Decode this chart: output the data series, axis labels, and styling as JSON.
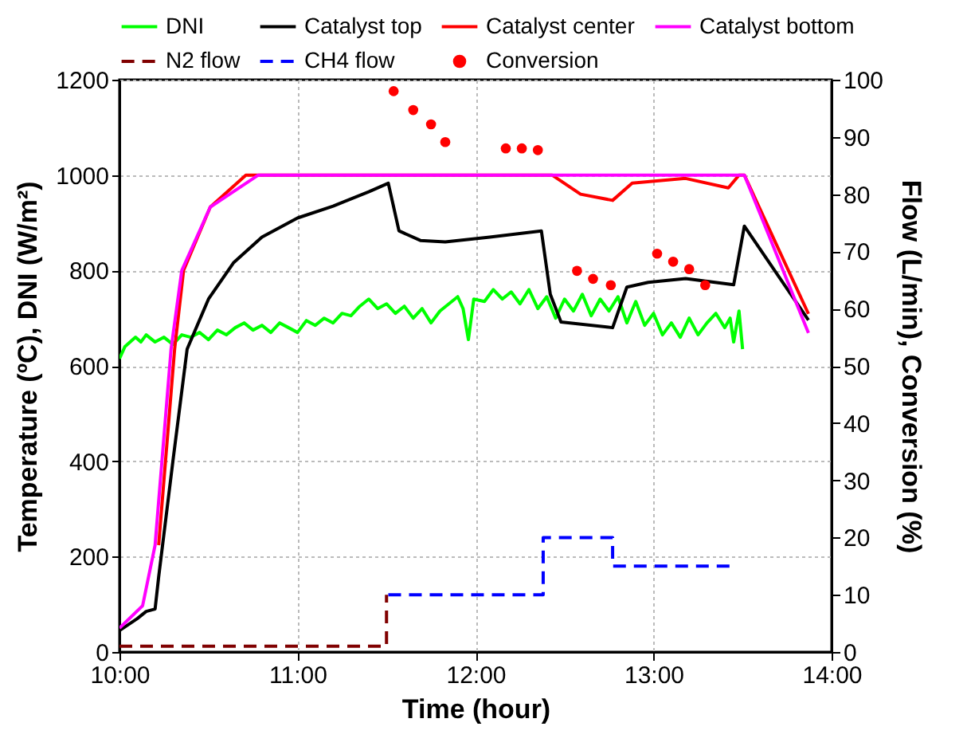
{
  "chart_data": {
    "type": "line",
    "xlabel": "Time (hour)",
    "ylabel": "Temperature (ºC), DNI (W/m²)",
    "y2label": "Flow (L/min), Conversion (%)",
    "xlim": [
      10,
      14
    ],
    "xticks": [
      {
        "value": 10,
        "label": "10:00"
      },
      {
        "value": 11,
        "label": "11:00"
      },
      {
        "value": 12,
        "label": "12:00"
      },
      {
        "value": 13,
        "label": "13:00"
      },
      {
        "value": 14,
        "label": "14:00"
      }
    ],
    "ylim": [
      0,
      1200
    ],
    "yticks": [
      0,
      200,
      400,
      600,
      800,
      1000,
      1200
    ],
    "y2lim": [
      0,
      100
    ],
    "y2ticks": [
      0,
      10,
      20,
      30,
      40,
      50,
      60,
      70,
      80,
      90,
      100
    ],
    "grid": true,
    "legend": "top",
    "line_style": "solid",
    "series": [
      {
        "name": "DNI",
        "color": "#00ff00",
        "x": [
          10.0,
          10.03,
          10.06,
          10.09,
          10.12,
          10.15,
          10.2,
          10.25,
          10.3,
          10.35,
          10.4,
          10.45,
          10.5,
          10.55,
          10.6,
          10.65,
          10.7,
          10.75,
          10.8,
          10.85,
          10.9,
          10.95,
          11.0,
          11.05,
          11.1,
          11.15,
          11.2,
          11.25,
          11.3,
          11.35,
          11.4,
          11.45,
          11.5,
          11.55,
          11.6,
          11.65,
          11.7,
          11.75,
          11.8,
          11.85,
          11.9,
          11.93,
          11.96,
          11.99,
          12.05,
          12.1,
          12.15,
          12.2,
          12.25,
          12.3,
          12.35,
          12.4,
          12.45,
          12.5,
          12.55,
          12.6,
          12.65,
          12.7,
          12.75,
          12.8,
          12.85,
          12.9,
          12.95,
          13.0,
          13.05,
          13.1,
          13.15,
          13.2,
          13.25,
          13.3,
          13.35,
          13.4,
          13.43,
          13.45,
          13.48,
          13.5
        ],
        "values": [
          615,
          640,
          650,
          660,
          650,
          665,
          650,
          660,
          645,
          665,
          660,
          670,
          655,
          675,
          665,
          680,
          690,
          675,
          685,
          670,
          690,
          680,
          670,
          695,
          685,
          700,
          690,
          710,
          705,
          725,
          740,
          720,
          730,
          710,
          725,
          700,
          720,
          690,
          715,
          730,
          745,
          720,
          655,
          740,
          735,
          760,
          740,
          755,
          730,
          760,
          720,
          745,
          700,
          740,
          715,
          750,
          705,
          740,
          715,
          745,
          690,
          735,
          685,
          710,
          665,
          690,
          660,
          700,
          665,
          690,
          710,
          680,
          700,
          650,
          715,
          635
        ]
      },
      {
        "name": "Catalyst top",
        "color": "#000000",
        "x": [
          10.0,
          10.1,
          10.15,
          10.2,
          10.22,
          10.3,
          10.38,
          10.5,
          10.64,
          10.8,
          11.0,
          11.2,
          11.4,
          11.51,
          11.57,
          11.69,
          11.83,
          12.08,
          12.37,
          12.42,
          12.48,
          12.77,
          12.85,
          12.97,
          13.18,
          13.45,
          13.51,
          13.87
        ],
        "values": [
          45,
          70,
          85,
          90,
          157,
          400,
          635,
          740,
          816,
          870,
          910,
          935,
          965,
          983,
          883,
          863,
          860,
          870,
          883,
          750,
          692,
          680,
          765,
          775,
          783,
          770,
          893,
          696
        ]
      },
      {
        "name": "Catalyst center",
        "color": "#ff0000",
        "x": [
          10.22,
          10.31,
          10.36,
          10.51,
          10.71,
          12.43,
          12.59,
          12.77,
          12.88,
          13.18,
          13.42,
          13.48,
          13.51,
          13.87
        ],
        "values": [
          224,
          636,
          800,
          933,
          1000,
          1000,
          960,
          947,
          983,
          993,
          973,
          1000,
          1000,
          709
        ]
      },
      {
        "name": "Catalyst bottom",
        "color": "#ff00ff",
        "x": [
          10.0,
          10.13,
          10.2,
          10.29,
          10.35,
          10.51,
          10.78,
          13.51,
          13.87
        ],
        "values": [
          50,
          97,
          224,
          636,
          800,
          933,
          1000,
          1000,
          669
        ]
      },
      {
        "name": "N2 flow",
        "color": "#800000",
        "axis": "y2",
        "line_style": "dashed",
        "x": [
          10.0,
          11.5,
          11.5
        ],
        "values": [
          1,
          1,
          10
        ]
      },
      {
        "name": "CH4 flow",
        "color": "#0000ff",
        "axis": "y2",
        "line_style": "dashed",
        "x": [
          11.51,
          12.38,
          12.38,
          12.77,
          12.77,
          13.45
        ],
        "values": [
          10,
          10,
          20,
          20,
          15,
          15
        ]
      },
      {
        "name": "Conversion",
        "color": "#ff0000",
        "type": "scatter",
        "marker": "circle",
        "axis": "y2",
        "x": [
          11.54,
          11.65,
          11.75,
          11.83,
          12.17,
          12.26,
          12.35,
          12.57,
          12.66,
          12.76,
          13.02,
          13.11,
          13.2,
          13.29
        ],
        "values": [
          98,
          94.7,
          92.2,
          89.1,
          88,
          88,
          87.7,
          66.6,
          65.2,
          64.1,
          69.6,
          68.2,
          66.9,
          64.1
        ]
      }
    ]
  }
}
